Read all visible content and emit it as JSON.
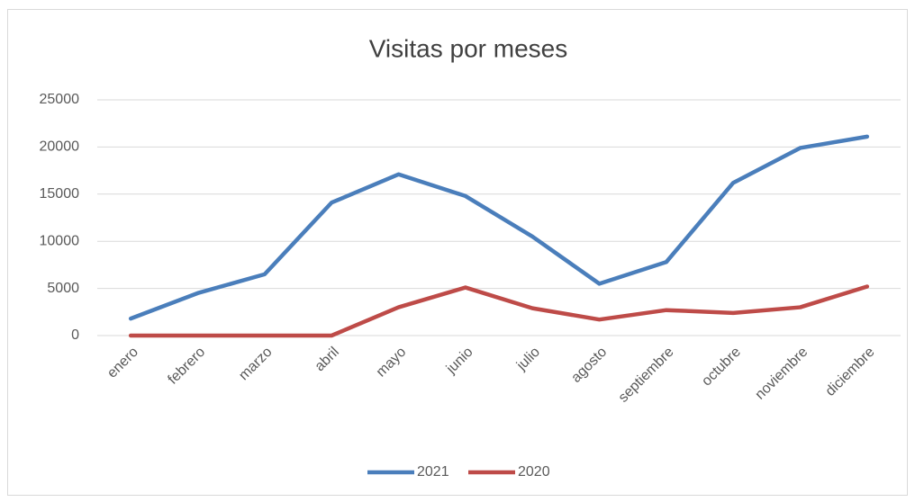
{
  "chart_data": {
    "type": "line",
    "title": "Visitas por meses",
    "categories": [
      "enero",
      "febrero",
      "marzo",
      "abril",
      "mayo",
      "junio",
      "julio",
      "agosto",
      "septiembre",
      "octubre",
      "noviembre",
      "diciembre"
    ],
    "series": [
      {
        "name": "2021",
        "color": "#4a7ebb",
        "values": [
          1800,
          4500,
          6500,
          14100,
          17100,
          14800,
          10500,
          5500,
          7800,
          16200,
          19900,
          21100
        ]
      },
      {
        "name": "2020",
        "color": "#be4b48",
        "values": [
          0,
          0,
          0,
          0,
          3000,
          5100,
          2900,
          1700,
          2700,
          2400,
          3000,
          5200
        ]
      }
    ],
    "ylim": [
      0,
      25000
    ],
    "yticks": [
      0,
      5000,
      10000,
      15000,
      20000,
      25000
    ],
    "grid": true,
    "legend": "bottom"
  }
}
